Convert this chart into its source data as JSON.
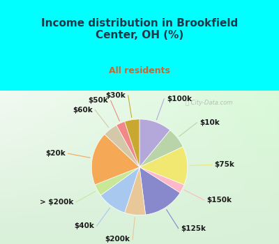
{
  "title": "Income distribution in Brookfield\nCenter, OH (%)",
  "subtitle": "All residents",
  "title_color": "#1a3a4a",
  "subtitle_color": "#cc6633",
  "background_top": "#00ffff",
  "labels": [
    "$100k",
    "$10k",
    "$75k",
    "$150k",
    "$125k",
    "$200k",
    "$40k",
    "> $200k",
    "$20k",
    "$60k",
    "$50k",
    "$30k"
  ],
  "values": [
    11,
    7,
    13,
    3,
    14,
    7,
    10,
    4,
    18,
    5,
    3,
    5
  ],
  "colors": [
    "#b3a8d9",
    "#b8d4a8",
    "#f0e870",
    "#ffb8c8",
    "#8888cc",
    "#e8c898",
    "#a8c8f0",
    "#c8e898",
    "#f5a855",
    "#d4c8a8",
    "#f08888",
    "#c8a830"
  ],
  "label_fontsize": 7.5,
  "wedge_linewidth": 0.5,
  "wedge_linecolor": "white"
}
